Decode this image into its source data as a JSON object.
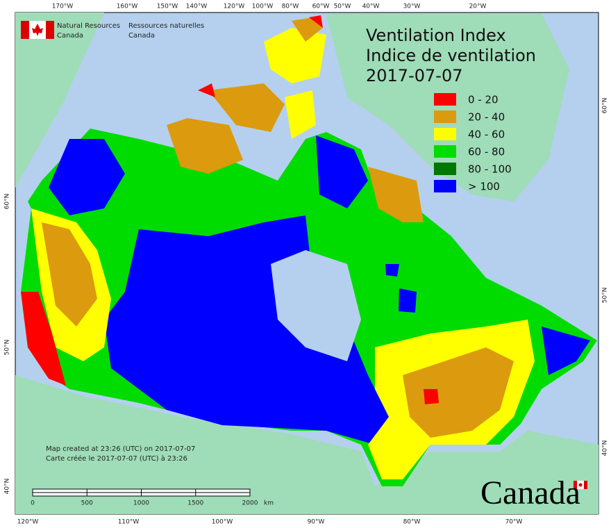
{
  "agency_en": [
    "Natural Resources",
    "Canada"
  ],
  "agency_fr": [
    "Ressources naturelles",
    "Canada"
  ],
  "title": [
    "Ventilation Index",
    "Indice de ventilation",
    "2017-07-07"
  ],
  "legend": [
    {
      "label": "0 - 20",
      "color": "#ff0000"
    },
    {
      "label": "20 - 40",
      "color": "#dc9a0e"
    },
    {
      "label": "40 - 60",
      "color": "#ffff00"
    },
    {
      "label": "60 - 80",
      "color": "#00dc00"
    },
    {
      "label": "80 - 100",
      "color": "#007800"
    },
    {
      "label": "> 100",
      "color": "#0000ff"
    }
  ],
  "top_longitudes": [
    "170°W",
    "160°W",
    "150°W",
    "140°W",
    "120°W",
    "100°W",
    "80°W",
    "60°W",
    "50°W",
    "40°W",
    "30°W",
    "20°W"
  ],
  "bottom_longitudes": [
    "120°W",
    "110°W",
    "100°W",
    "90°W",
    "80°W",
    "70°W"
  ],
  "left_latitudes": [
    "60°N",
    "50°N",
    "40°N"
  ],
  "right_latitudes": [
    "60°N",
    "50°N",
    "40°N"
  ],
  "credit": [
    "Map created at 23:26 (UTC) on 2017-07-07",
    "Carte créée le 2017-07-07 (UTC) à 23:26"
  ],
  "scale": {
    "ticks": [
      0,
      500,
      1000,
      1500,
      2000
    ],
    "unit": "km"
  },
  "wordmark": "Canada"
}
